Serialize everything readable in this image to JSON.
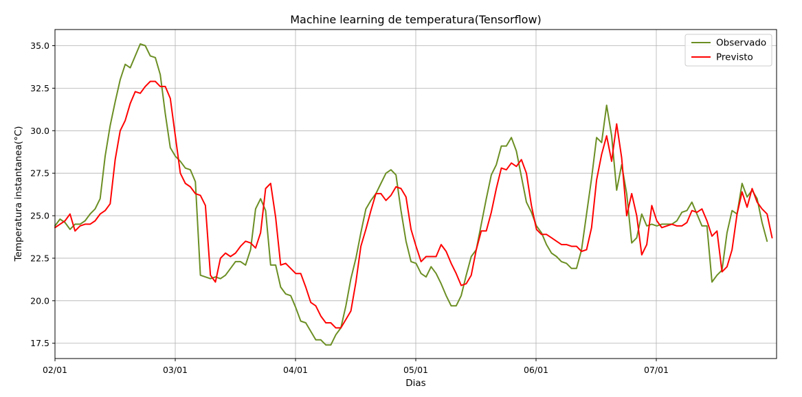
{
  "chart_data": {
    "type": "line",
    "title": "Machine learning de temperatura(Tensorflow)",
    "xlabel": "Dias",
    "ylabel": "Temperatura instantanea(°C)",
    "x_unit": "days",
    "xlim": [
      0,
      6.0
    ],
    "ylim": [
      16.6,
      35.95
    ],
    "xticks": [
      {
        "x": 0,
        "label": "02/01"
      },
      {
        "x": 1,
        "label": "03/01"
      },
      {
        "x": 2,
        "label": "04/01"
      },
      {
        "x": 3,
        "label": "05/01"
      },
      {
        "x": 4,
        "label": "06/01"
      },
      {
        "x": 5,
        "label": "07/01"
      }
    ],
    "yticks": [
      17.5,
      20.0,
      22.5,
      25.0,
      27.5,
      30.0,
      32.5,
      35.0
    ],
    "ytick_labels": [
      "17.5",
      "20.0",
      "22.5",
      "25.0",
      "27.5",
      "30.0",
      "32.5",
      "35.0"
    ],
    "grid": true,
    "legend_position": "top-right",
    "x_step": 0.0417,
    "series": [
      {
        "name": "Observado",
        "color": "#6b8e23",
        "values": [
          24.4,
          24.8,
          24.6,
          24.2,
          24.5,
          24.5,
          24.7,
          25.1,
          25.4,
          26.0,
          28.5,
          30.3,
          31.7,
          33.0,
          33.9,
          33.7,
          34.4,
          35.1,
          35.0,
          34.4,
          34.3,
          33.3,
          31.0,
          29.0,
          28.5,
          28.2,
          27.8,
          27.7,
          27.0,
          21.5,
          21.4,
          21.3,
          21.4,
          21.3,
          21.5,
          21.9,
          22.3,
          22.3,
          22.1,
          23.0,
          25.4,
          26.0,
          25.3,
          22.1,
          22.1,
          20.8,
          20.4,
          20.3,
          19.6,
          18.8,
          18.7,
          18.2,
          17.7,
          17.7,
          17.4,
          17.4,
          18.0,
          18.4,
          19.7,
          21.3,
          22.5,
          24.0,
          25.4,
          25.9,
          26.3,
          26.9,
          27.5,
          27.7,
          27.4,
          25.3,
          23.5,
          22.3,
          22.2,
          21.6,
          21.4,
          22.0,
          21.6,
          21.0,
          20.3,
          19.7,
          19.7,
          20.3,
          21.5,
          22.6,
          23.0,
          24.5,
          26.0,
          27.4,
          28.0,
          29.1,
          29.1,
          29.6,
          28.8,
          27.3,
          25.8,
          25.2,
          24.4,
          24.0,
          23.3,
          22.8,
          22.6,
          22.3,
          22.2,
          21.9,
          21.9,
          23.0,
          25.1,
          27.2,
          29.6,
          29.3,
          31.5,
          29.7,
          26.5,
          28.0,
          26.3,
          23.4,
          23.7,
          25.1,
          24.4,
          24.5,
          24.4,
          24.5,
          24.5,
          24.5,
          24.7,
          25.2,
          25.3,
          25.8,
          25.1,
          24.4,
          24.4,
          21.1,
          21.5,
          21.8,
          24.0,
          25.3,
          25.1,
          26.9,
          26.1,
          26.5,
          26.0,
          24.6,
          23.5
        ]
      },
      {
        "name": "Previsto",
        "color": "#ff0000",
        "values": [
          24.3,
          24.5,
          24.7,
          25.1,
          24.1,
          24.4,
          24.5,
          24.5,
          24.7,
          25.1,
          25.3,
          25.7,
          28.3,
          30.0,
          30.6,
          31.6,
          32.3,
          32.2,
          32.6,
          32.9,
          32.9,
          32.6,
          32.6,
          31.9,
          29.7,
          27.5,
          26.9,
          26.7,
          26.3,
          26.2,
          25.6,
          21.5,
          21.1,
          22.5,
          22.8,
          22.6,
          22.8,
          23.2,
          23.5,
          23.4,
          23.1,
          24.0,
          26.6,
          26.9,
          24.9,
          22.1,
          22.2,
          21.9,
          21.6,
          21.6,
          20.8,
          19.9,
          19.7,
          19.1,
          18.7,
          18.7,
          18.4,
          18.4,
          18.9,
          19.4,
          21.1,
          23.2,
          24.2,
          25.3,
          26.3,
          26.3,
          25.9,
          26.2,
          26.7,
          26.6,
          26.1,
          24.2,
          23.2,
          22.3,
          22.6,
          22.6,
          22.6,
          23.3,
          22.9,
          22.2,
          21.6,
          20.9,
          21.0,
          21.5,
          23.0,
          24.1,
          24.1,
          25.2,
          26.6,
          27.8,
          27.7,
          28.1,
          27.9,
          28.3,
          27.5,
          25.6,
          24.2,
          23.9,
          23.9,
          23.7,
          23.5,
          23.3,
          23.3,
          23.2,
          23.2,
          22.9,
          23.0,
          24.3,
          27.1,
          28.6,
          29.7,
          28.2,
          30.4,
          28.4,
          25.0,
          26.3,
          25.0,
          22.7,
          23.3,
          25.6,
          24.7,
          24.3,
          24.4,
          24.5,
          24.4,
          24.4,
          24.6,
          25.3,
          25.2,
          25.4,
          24.7,
          23.8,
          24.1,
          21.7,
          22.0,
          23.0,
          25.1,
          26.4,
          25.5,
          26.6,
          25.8,
          25.4,
          25.1,
          23.7
        ]
      }
    ]
  }
}
